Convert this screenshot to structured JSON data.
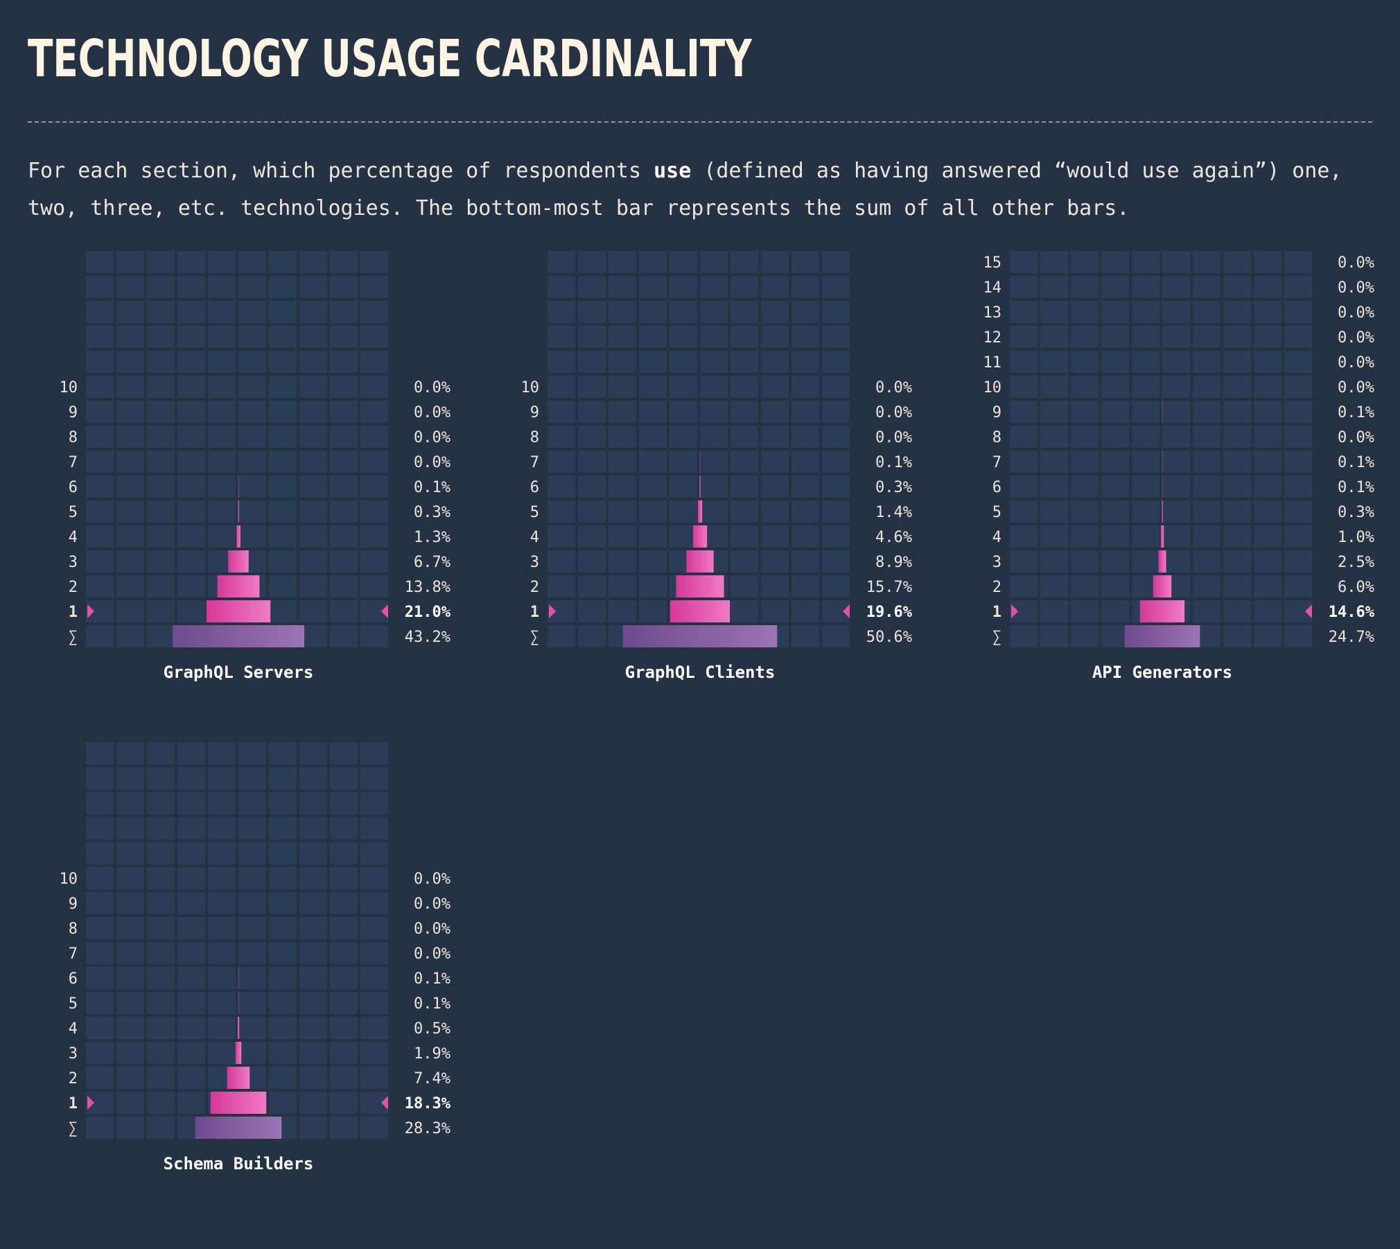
{
  "page": {
    "title": "TECHNOLOGY USAGE CARDINALITY",
    "description_pre": "For each section, which percentage of respondents ",
    "description_bold": "use",
    "description_line1_post": " (defined as having answered “would use again”) one,",
    "description_line2": "two, three, etc. technologies. The bottom-most bar represents the sum of all other bars."
  },
  "colors": {
    "background": "#253244",
    "cell": "#2b3d56",
    "bar_pink_start": "#d6389a",
    "bar_pink_end": "#f07bc4",
    "sum_start": "#6e4a8e",
    "sum_end": "#9c74b4",
    "marker": "#e84fa6"
  },
  "chart_data": [
    {
      "type": "bar",
      "title": "GraphQL Servers",
      "categories": [
        "10",
        "9",
        "8",
        "7",
        "6",
        "5",
        "4",
        "3",
        "2",
        "1",
        "∑"
      ],
      "values": [
        0.0,
        0.0,
        0.0,
        0.0,
        0.1,
        0.3,
        1.3,
        6.7,
        13.8,
        21.0,
        43.2
      ],
      "value_labels": [
        "0.0%",
        "0.0%",
        "0.0%",
        "0.0%",
        "0.1%",
        "0.3%",
        "1.3%",
        "6.7%",
        "13.8%",
        "21.0%",
        "43.2%"
      ],
      "highlight": "1",
      "xlim": [
        0,
        100
      ]
    },
    {
      "type": "bar",
      "title": "GraphQL Clients",
      "categories": [
        "10",
        "9",
        "8",
        "7",
        "6",
        "5",
        "4",
        "3",
        "2",
        "1",
        "∑"
      ],
      "values": [
        0.0,
        0.0,
        0.0,
        0.1,
        0.3,
        1.4,
        4.6,
        8.9,
        15.7,
        19.6,
        50.6
      ],
      "value_labels": [
        "0.0%",
        "0.0%",
        "0.0%",
        "0.1%",
        "0.3%",
        "1.4%",
        "4.6%",
        "8.9%",
        "15.7%",
        "19.6%",
        "50.6%"
      ],
      "highlight": "1",
      "xlim": [
        0,
        100
      ]
    },
    {
      "type": "bar",
      "title": "API Generators",
      "categories": [
        "15",
        "14",
        "13",
        "12",
        "11",
        "10",
        "9",
        "8",
        "7",
        "6",
        "5",
        "4",
        "3",
        "2",
        "1",
        "∑"
      ],
      "values": [
        0.0,
        0.0,
        0.0,
        0.0,
        0.0,
        0.0,
        0.1,
        0.0,
        0.1,
        0.1,
        0.3,
        1.0,
        2.5,
        6.0,
        14.6,
        24.7
      ],
      "value_labels": [
        "0.0%",
        "0.0%",
        "0.0%",
        "0.0%",
        "0.0%",
        "0.0%",
        "0.1%",
        "0.0%",
        "0.1%",
        "0.1%",
        "0.3%",
        "1.0%",
        "2.5%",
        "6.0%",
        "14.6%",
        "24.7%"
      ],
      "highlight": "1",
      "xlim": [
        0,
        100
      ]
    },
    {
      "type": "bar",
      "title": "Schema Builders",
      "categories": [
        "10",
        "9",
        "8",
        "7",
        "6",
        "5",
        "4",
        "3",
        "2",
        "1",
        "∑"
      ],
      "values": [
        0.0,
        0.0,
        0.0,
        0.0,
        0.1,
        0.1,
        0.5,
        1.9,
        7.4,
        18.3,
        28.3
      ],
      "value_labels": [
        "0.0%",
        "0.0%",
        "0.0%",
        "0.0%",
        "0.1%",
        "0.1%",
        "0.5%",
        "1.9%",
        "7.4%",
        "18.3%",
        "28.3%"
      ],
      "highlight": "1",
      "xlim": [
        0,
        100
      ]
    }
  ]
}
